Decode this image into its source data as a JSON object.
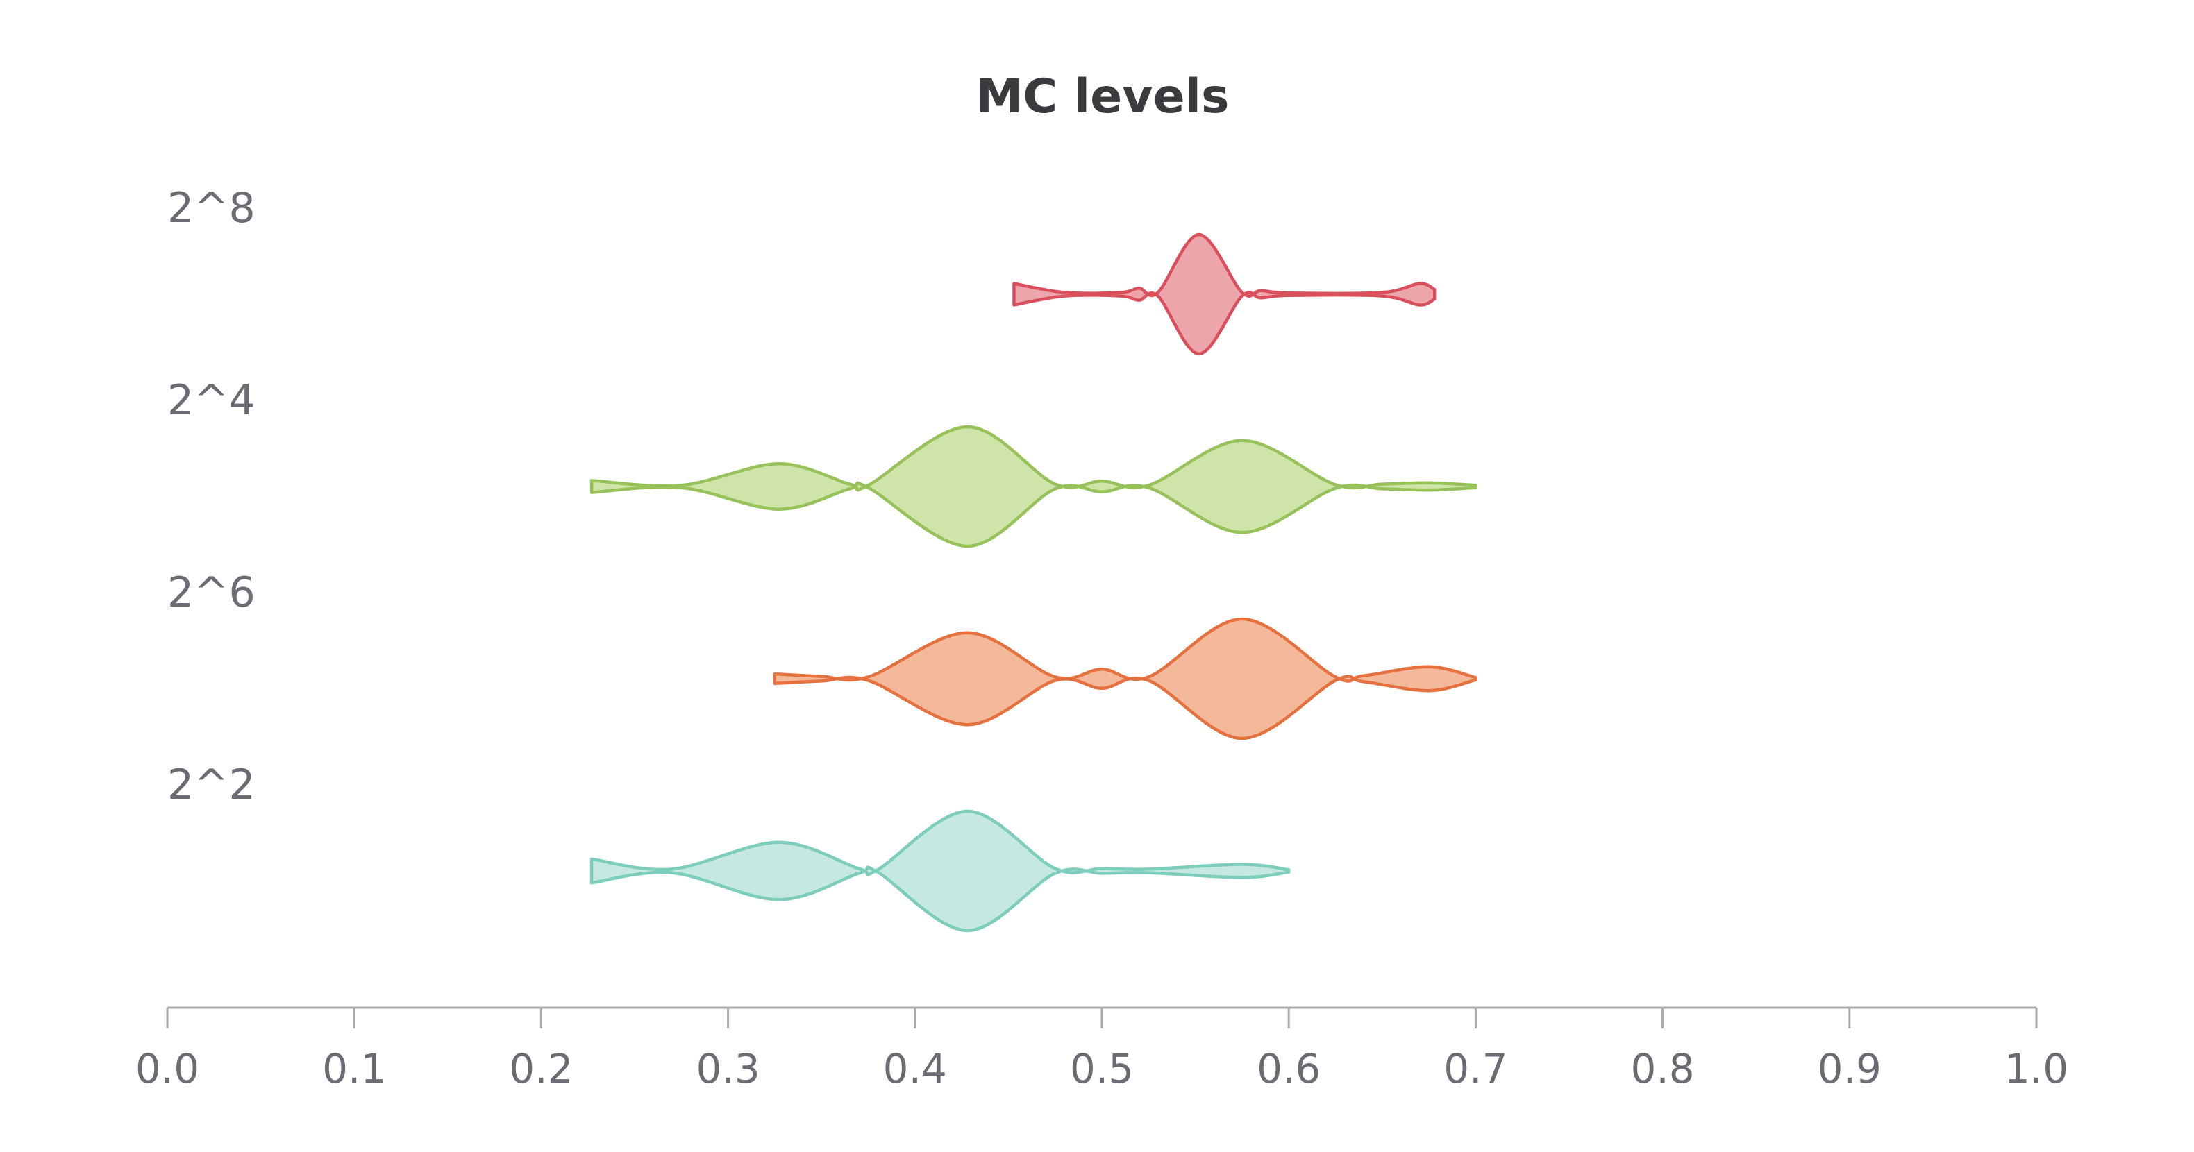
{
  "chart_data": {
    "type": "violin",
    "title": "MC levels",
    "xlabel": "",
    "ylabel": "",
    "xlim": [
      0,
      1
    ],
    "x_ticks": [
      "0.0",
      "0.1",
      "0.2",
      "0.3",
      "0.4",
      "0.5",
      "0.6",
      "0.7",
      "0.8",
      "0.9",
      "1.0"
    ],
    "series": [
      {
        "label": "2^8",
        "color": "#d9505c",
        "fill": "#eca6ab",
        "density": [
          [
            0.453,
            0.18
          ],
          [
            0.48,
            0.03
          ],
          [
            0.51,
            0.03
          ],
          [
            0.52,
            0.1
          ],
          [
            0.53,
            0.03
          ],
          [
            0.552,
            1.0
          ],
          [
            0.575,
            0.03
          ],
          [
            0.585,
            0.06
          ],
          [
            0.6,
            0.02
          ],
          [
            0.65,
            0.03
          ],
          [
            0.67,
            0.18
          ],
          [
            0.678,
            0.08
          ]
        ]
      },
      {
        "label": "2^4",
        "color": "#97c25a",
        "fill": "#cfe4a8",
        "density": [
          [
            0.227,
            0.1
          ],
          [
            0.275,
            0.02
          ],
          [
            0.327,
            0.38
          ],
          [
            0.365,
            0.04
          ],
          [
            0.375,
            0.02
          ],
          [
            0.428,
            1.0
          ],
          [
            0.475,
            0.04
          ],
          [
            0.5,
            0.09
          ],
          [
            0.525,
            0.02
          ],
          [
            0.575,
            0.77
          ],
          [
            0.625,
            0.03
          ],
          [
            0.65,
            0.04
          ],
          [
            0.675,
            0.06
          ],
          [
            0.7,
            0.02
          ]
        ]
      },
      {
        "label": "2^6",
        "color": "#e5723e",
        "fill": "#f4b99a",
        "density": [
          [
            0.325,
            0.08
          ],
          [
            0.35,
            0.04
          ],
          [
            0.375,
            0.03
          ],
          [
            0.428,
            0.77
          ],
          [
            0.475,
            0.03
          ],
          [
            0.5,
            0.16
          ],
          [
            0.525,
            0.03
          ],
          [
            0.575,
            1.0
          ],
          [
            0.625,
            0.03
          ],
          [
            0.64,
            0.05
          ],
          [
            0.675,
            0.2
          ],
          [
            0.7,
            0.02
          ]
        ]
      },
      {
        "label": "2^2",
        "color": "#7ccdbb",
        "fill": "#c5e8e0",
        "density": [
          [
            0.227,
            0.2
          ],
          [
            0.27,
            0.03
          ],
          [
            0.327,
            0.48
          ],
          [
            0.37,
            0.04
          ],
          [
            0.38,
            0.02
          ],
          [
            0.428,
            1.0
          ],
          [
            0.475,
            0.04
          ],
          [
            0.5,
            0.04
          ],
          [
            0.525,
            0.03
          ],
          [
            0.575,
            0.11
          ],
          [
            0.6,
            0.02
          ]
        ]
      }
    ]
  }
}
